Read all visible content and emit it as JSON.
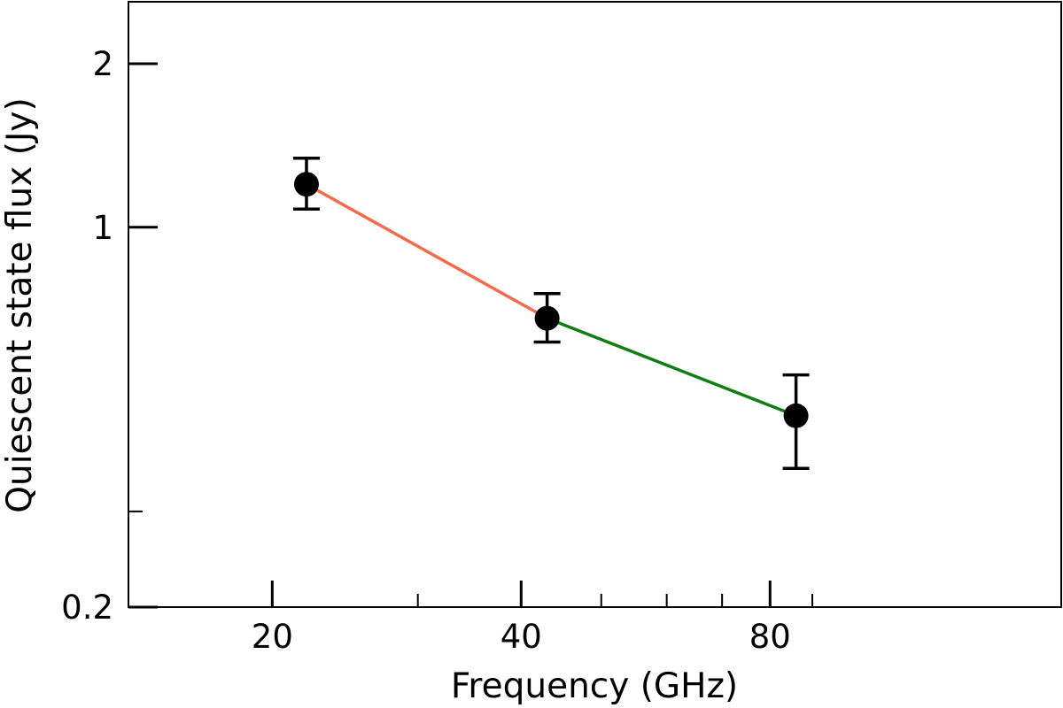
{
  "chart_data": {
    "type": "line",
    "title": "",
    "xlabel": "Frequency (GHz)",
    "ylabel": "Quiescent state flux (Jy)",
    "x_scale": "log",
    "y_scale": "log",
    "xlim": [
      13.4,
      180
    ],
    "ylim": [
      0.2,
      2.6
    ],
    "x_ticks": [
      {
        "value": 20,
        "label": "20"
      },
      {
        "value": 40,
        "label": "40"
      },
      {
        "value": 80,
        "label": "80"
      }
    ],
    "x_minor_ticks": [
      30,
      50,
      60,
      70,
      90
    ],
    "y_ticks": [
      {
        "value": 0.2,
        "label": "0.2"
      },
      {
        "value": 1,
        "label": "1"
      },
      {
        "value": 2,
        "label": "2"
      }
    ],
    "y_minor_ticks": [
      0.3
    ],
    "grid": false,
    "ticks_direction": "in",
    "points": [
      {
        "x": 22,
        "y": 1.2,
        "yerr_low": 1.08,
        "yerr_high": 1.34
      },
      {
        "x": 43,
        "y": 0.68,
        "yerr_low": 0.615,
        "yerr_high": 0.755
      },
      {
        "x": 86,
        "y": 0.45,
        "yerr_low": 0.36,
        "yerr_high": 0.535
      }
    ],
    "segments": [
      {
        "from": 0,
        "to": 1,
        "color": "#f46a4d"
      },
      {
        "from": 1,
        "to": 2,
        "color": "#127e12"
      }
    ],
    "marker_color": "#000000"
  }
}
